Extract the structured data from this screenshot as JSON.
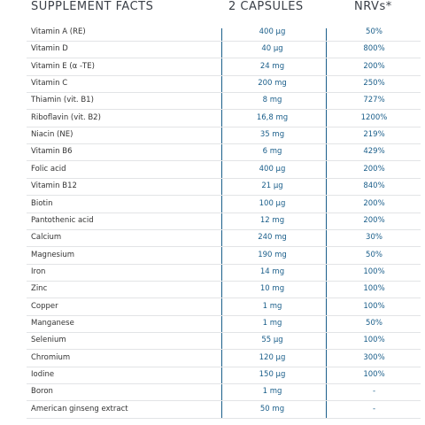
{
  "header": [
    "SUPPLEMENT FACTS",
    "2 CAPSULES",
    "NRVs*"
  ],
  "rows": [
    [
      "Vitamin A (RE)",
      "400 µg",
      "50%"
    ],
    [
      "Vitamin D",
      "40 µg",
      "800%"
    ],
    [
      "Vitamin E (α -TE)",
      "24 mg",
      "200%"
    ],
    [
      "Vitamin C",
      "200 mg",
      "250%"
    ],
    [
      "Thiamin (vit. B1)",
      "8 mg",
      "727%"
    ],
    [
      "Riboflavin (vit. B2)",
      "16,8 mg",
      "1200%"
    ],
    [
      "Niacin (NE)",
      "35 mg",
      "219%"
    ],
    [
      "Vitamin B6",
      "6 mg",
      "429%"
    ],
    [
      "Folic acid",
      "400 µg",
      "200%"
    ],
    [
      "Vitamin B12",
      "21 µg",
      "840%"
    ],
    [
      "Biotin",
      "100 µg",
      "200%"
    ],
    [
      "Pantothenic acid",
      "12 mg",
      "200%"
    ],
    [
      "Calcium",
      "240 mg",
      "30%"
    ],
    [
      "Magnesium",
      "190 mg",
      "50%"
    ],
    [
      "Iron",
      "14 mg",
      "100%"
    ],
    [
      "Zinc",
      "10 mg",
      "100%"
    ],
    [
      "Copper",
      "1 mg",
      "100%"
    ],
    [
      "Manganese",
      "1 mg",
      "50%"
    ],
    [
      "Selenium",
      "55 µg",
      "100%"
    ],
    [
      "Chromium",
      "120 µg",
      "300%"
    ],
    [
      "Iodine",
      "150 µg",
      "100%"
    ],
    [
      "Boron",
      "1 mg",
      "-"
    ],
    [
      "American ginseng extract",
      "50 mg",
      "-"
    ]
  ]
}
